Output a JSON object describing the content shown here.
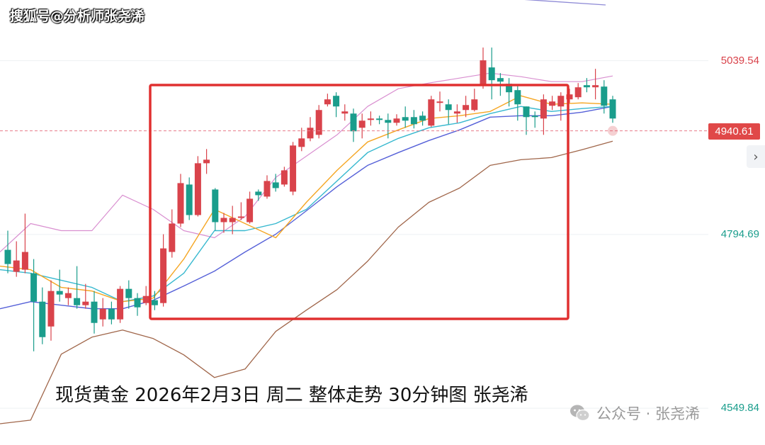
{
  "watermark_top": "搜狐号@分析师张尧浠",
  "caption": "现货黄金 2026年2月3日 周二 整体走势 30分钟图 张尧浠",
  "wechat_label": "公众号 · 张尧浠",
  "icons": {
    "wechat": "wechat-icon",
    "scroll_right": "chevron-right-icon"
  },
  "colors": {
    "up": "#d9434b",
    "down": "#1a9d8c",
    "bb_upper": "#d98fd0",
    "bb_lower": "#a0664a",
    "ma_short": "#f5a623",
    "ma_mid": "#36b8cf",
    "ma_long": "#5560d8",
    "trendline": "#8e8ad6",
    "highlight_box": "#e03030",
    "current_price_line": "#e87a8a"
  },
  "chart_data": {
    "type": "candlestick",
    "timeframe": "30分钟",
    "y_axis_ticks": [
      {
        "label": "5039.54",
        "value": 5039.54,
        "color": "#d9434b"
      },
      {
        "label": "4794.69",
        "value": 4794.69,
        "color": "#1a9d8c"
      },
      {
        "label": "4549.84",
        "value": 4549.84,
        "color": "#1a9d8c"
      }
    ],
    "current_price": {
      "label": "4940.61",
      "value": 4940.61
    },
    "ylim": [
      4498,
      5125
    ],
    "candles": [
      [
        4773,
        4753,
        4800,
        4740
      ],
      [
        4742,
        4758,
        4785,
        4735
      ],
      [
        4745,
        4770,
        4824,
        4740
      ],
      [
        4740,
        4700,
        4760,
        4630
      ],
      [
        4700,
        4650,
        4720,
        4640
      ],
      [
        4665,
        4715,
        4730,
        4645
      ],
      [
        4715,
        4710,
        4745,
        4700
      ],
      [
        4705,
        4712,
        4720,
        4695
      ],
      [
        4705,
        4695,
        4750,
        4690
      ],
      [
        4695,
        4700,
        4725,
        4690
      ],
      [
        4700,
        4670,
        4715,
        4655
      ],
      [
        4675,
        4690,
        4705,
        4665
      ],
      [
        4690,
        4675,
        4700,
        4668
      ],
      [
        4675,
        4718,
        4722,
        4670
      ],
      [
        4718,
        4705,
        4730,
        4690
      ],
      [
        4705,
        4692,
        4712,
        4680
      ],
      [
        4698,
        4708,
        4722,
        4695
      ],
      [
        4702,
        4695,
        4715,
        4688
      ],
      [
        4698,
        4775,
        4795,
        4693
      ],
      [
        4770,
        4810,
        4830,
        4762
      ],
      [
        4810,
        4867,
        4880,
        4805
      ],
      [
        4865,
        4822,
        4875,
        4815
      ],
      [
        4822,
        4895,
        4905,
        4820
      ],
      [
        4895,
        4900,
        4915,
        4880
      ],
      [
        4858,
        4812,
        4860,
        4800
      ],
      [
        4812,
        4818,
        4825,
        4797
      ],
      [
        4812,
        4818,
        4835,
        4795
      ],
      [
        4818,
        4820,
        4840,
        4815
      ],
      [
        4812,
        4845,
        4855,
        4810
      ],
      [
        4855,
        4850,
        4858,
        4842
      ],
      [
        4848,
        4870,
        4878,
        4845
      ],
      [
        4868,
        4860,
        4880,
        4855
      ],
      [
        4865,
        4885,
        4890,
        4862
      ],
      [
        4855,
        4920,
        4925,
        4850
      ],
      [
        4918,
        4930,
        4945,
        4912
      ],
      [
        4930,
        4945,
        4960,
        4926
      ],
      [
        4935,
        4970,
        4977,
        4930
      ],
      [
        4978,
        4985,
        4993,
        4975
      ],
      [
        4990,
        4975,
        4995,
        4960
      ],
      [
        4965,
        4968,
        4978,
        4955
      ],
      [
        4965,
        4940,
        4972,
        4925
      ],
      [
        4945,
        4955,
        4965,
        4930
      ],
      [
        4956,
        4958,
        4968,
        4948
      ],
      [
        4958,
        4956,
        4962,
        4950
      ],
      [
        4956,
        4952,
        4965,
        4930
      ],
      [
        4952,
        4958,
        4964,
        4948
      ],
      [
        4960,
        4955,
        4975,
        4945
      ],
      [
        4960,
        4950,
        4970,
        4944
      ],
      [
        4962,
        4955,
        4968,
        4948
      ],
      [
        4948,
        4985,
        4990,
        4946
      ],
      [
        4980,
        4982,
        4996,
        4968
      ],
      [
        4978,
        4970,
        4985,
        4950
      ],
      [
        4965,
        4968,
        4978,
        4952
      ],
      [
        4970,
        4977,
        4990,
        4960
      ],
      [
        4970,
        4985,
        5000,
        4968
      ],
      [
        5005,
        5040,
        5058,
        5000
      ],
      [
        5030,
        5012,
        5058,
        4985
      ],
      [
        5015,
        5010,
        5022,
        4990
      ],
      [
        5007,
        4995,
        5015,
        4975
      ],
      [
        4998,
        4978,
        5005,
        4955
      ],
      [
        4975,
        4960,
        4975,
        4935
      ],
      [
        4962,
        4960,
        4968,
        4945
      ],
      [
        4958,
        4985,
        4992,
        4935
      ],
      [
        4976,
        4982,
        4990,
        4970
      ],
      [
        4975,
        4990,
        4995,
        4955
      ],
      [
        4985,
        4992,
        5000,
        4980
      ],
      [
        4988,
        5002,
        5008,
        4985
      ],
      [
        5005,
        5002,
        5015,
        4995
      ],
      [
        5002,
        5005,
        5028,
        4985
      ],
      [
        5003,
        4976,
        5012,
        4965
      ],
      [
        4985,
        4958,
        4990,
        4952
      ]
    ],
    "indicators": {
      "bollinger_upper": [
        4770,
        4810,
        4800,
        4800,
        4850,
        4830,
        4800,
        4790,
        4820,
        4875,
        4905,
        4935,
        4975,
        5000,
        5008,
        5015,
        5022,
        5017,
        5010,
        5010,
        5018
      ],
      "bollinger_lower": [
        4528,
        4533,
        4626,
        4650,
        4660,
        4648,
        4625,
        4593,
        4605,
        4658,
        4688,
        4717,
        4757,
        4805,
        4840,
        4860,
        4892,
        4900,
        4903,
        4914,
        4926
      ],
      "ma_short": [
        4750,
        4745,
        4720,
        4715,
        4700,
        4705,
        4760,
        4830,
        4810,
        4790,
        4840,
        4885,
        4925,
        4942,
        4958,
        4962,
        4968,
        4990,
        4978,
        4980,
        4978
      ],
      "ma_mid": [
        4745,
        4740,
        4730,
        4720,
        4700,
        4708,
        4740,
        4800,
        4800,
        4810,
        4830,
        4870,
        4910,
        4930,
        4945,
        4952,
        4965,
        4975,
        4968,
        4972,
        4975
      ],
      "ma_long": [
        4690,
        4700,
        4695,
        4690,
        4690,
        4702,
        4722,
        4743,
        4770,
        4795,
        4828,
        4862,
        4892,
        4910,
        4927,
        4942,
        4960,
        4962,
        4962,
        4967,
        4975
      ],
      "trendline": [
        5175,
        5118
      ]
    }
  }
}
